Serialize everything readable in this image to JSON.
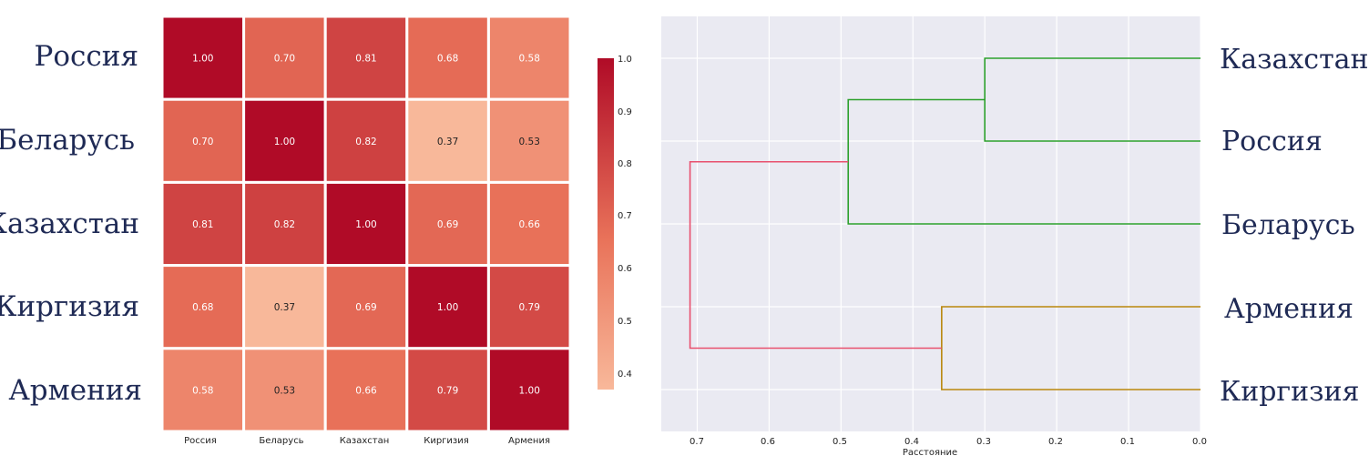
{
  "chart_data": [
    {
      "type": "heatmap",
      "title": "",
      "rows": [
        "Россия",
        "Беларусь",
        "Казахстан",
        "Киргизия",
        "Армения"
      ],
      "columns": [
        "Россия",
        "Беларусь",
        "Казахстан",
        "Киргизия",
        "Армения"
      ],
      "values": [
        [
          1.0,
          0.7,
          0.81,
          0.68,
          0.58
        ],
        [
          0.7,
          1.0,
          0.82,
          0.37,
          0.53
        ],
        [
          0.81,
          0.82,
          1.0,
          0.69,
          0.66
        ],
        [
          0.68,
          0.37,
          0.69,
          1.0,
          0.79
        ],
        [
          0.58,
          0.53,
          0.66,
          0.79,
          1.0
        ]
      ],
      "colorbar": {
        "range": [
          0.37,
          1.0
        ],
        "ticks": [
          0.4,
          0.5,
          0.6,
          0.7,
          0.8,
          0.9,
          1.0
        ],
        "tick_labels": [
          "0.4",
          "0.5",
          "0.6",
          "0.7",
          "0.8",
          "0.9",
          "1.0"
        ],
        "colormap": "reds",
        "color_low": "#f8b89a",
        "color_mid": "#e9735a",
        "color_high": "#b00b27"
      }
    },
    {
      "type": "dendrogram",
      "xlabel": "Расстояние",
      "xlim": [
        0.75,
        0.0
      ],
      "x_ticks": [
        0.7,
        0.6,
        0.5,
        0.4,
        0.3,
        0.2,
        0.1,
        0.0
      ],
      "x_tick_labels": [
        "0.7",
        "0.6",
        "0.5",
        "0.4",
        "0.3",
        "0.2",
        "0.1",
        "0.0"
      ],
      "leaves": [
        "Казахстан",
        "Россия",
        "Беларусь",
        "Армения",
        "Киргизия"
      ],
      "merges": [
        {
          "a": "Казахстан",
          "b": "Россия",
          "distance": 0.3,
          "color": "#2ca02c"
        },
        {
          "a": "Казахстан+Россия",
          "b": "Беларусь",
          "distance": 0.49,
          "color": "#2ca02c"
        },
        {
          "a": "Армения",
          "b": "Киргизия",
          "distance": 0.36,
          "color": "#b8860b"
        },
        {
          "a": "Казахстан+Россия+Беларусь",
          "b": "Армения+Киргизия",
          "distance": 0.71,
          "color": "#e8506e"
        }
      ],
      "background": "#eaeaf2"
    }
  ]
}
